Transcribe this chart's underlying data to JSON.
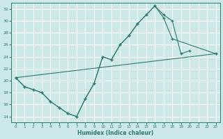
{
  "bg_color": "#cce8e8",
  "grid_color": "#ffffff",
  "line_color": "#2d7a6a",
  "xlabel": "Humidex (Indice chaleur)",
  "xlim": [
    -0.5,
    23.5
  ],
  "ylim": [
    13.0,
    33.0
  ],
  "xticks": [
    0,
    1,
    2,
    3,
    4,
    5,
    6,
    7,
    8,
    9,
    10,
    11,
    12,
    13,
    14,
    15,
    16,
    17,
    18,
    19,
    20,
    21,
    22,
    23
  ],
  "yticks": [
    14,
    16,
    18,
    20,
    22,
    24,
    26,
    28,
    30,
    32
  ],
  "series": [
    {
      "x": [
        0,
        1,
        2,
        3,
        4,
        5,
        6,
        7,
        8,
        9,
        10,
        11,
        12,
        13,
        14,
        15,
        16,
        17,
        18,
        19,
        20
      ],
      "y": [
        20.5,
        19,
        18.5,
        18,
        16.5,
        15.5,
        14.5,
        14,
        17,
        19.5,
        24,
        23.5,
        26,
        27.5,
        29.5,
        31,
        32.5,
        31.0,
        30.0,
        24.5,
        25.0
      ]
    },
    {
      "x": [
        0,
        1,
        2,
        3,
        4,
        5,
        6,
        7,
        8,
        9,
        10,
        11,
        12,
        13,
        14,
        15,
        16,
        17,
        18,
        23
      ],
      "y": [
        20.5,
        19,
        18.5,
        18,
        16.5,
        15.5,
        14.5,
        14,
        17,
        19.5,
        24,
        23.5,
        26,
        27.5,
        29.5,
        31,
        32.5,
        30.5,
        27.0,
        24.5
      ]
    },
    {
      "x": [
        0,
        23
      ],
      "y": [
        20.5,
        24.5
      ]
    }
  ]
}
